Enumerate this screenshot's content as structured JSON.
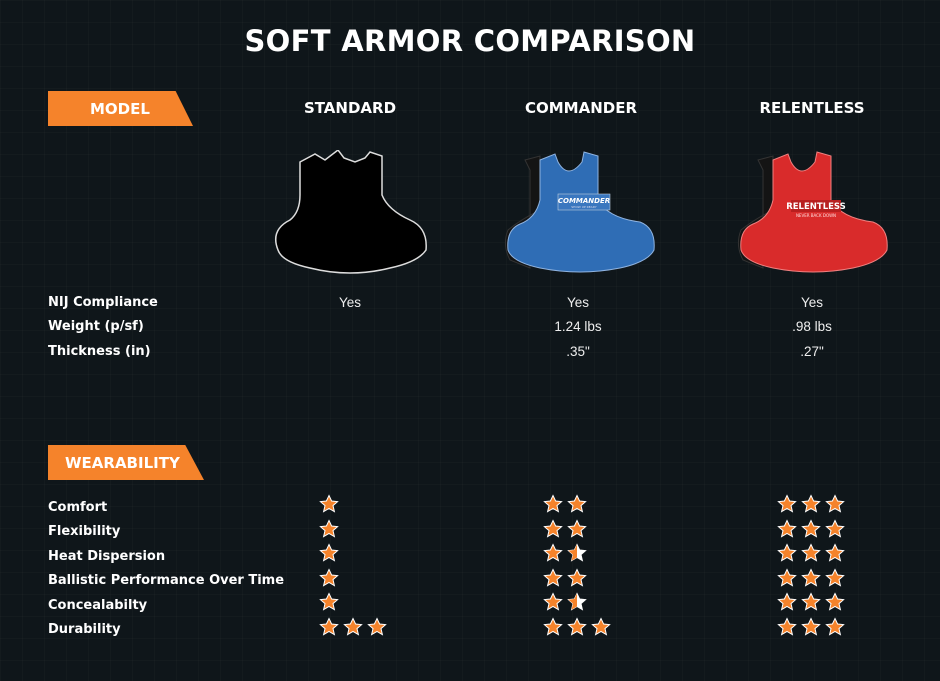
{
  "title": "SOFT ARMOR COMPARISON",
  "sections": {
    "model_label": "MODEL",
    "wearability_label": "WEARABILITY"
  },
  "models": [
    {
      "name": "STANDARD",
      "color": "#000000",
      "badge": ""
    },
    {
      "name": "COMMANDER",
      "color": "#2f6db5",
      "badge": "COMMANDER",
      "badge_sub": "SHOW UP READY"
    },
    {
      "name": "RELENTLESS",
      "color": "#d92b2b",
      "badge": "RELENTLESS",
      "badge_sub": "NEVER BACK DOWN"
    }
  ],
  "specs": {
    "labels": [
      "NIJ Compliance",
      "Weight (p/sf)",
      "Thickness (in)"
    ],
    "values": [
      [
        "Yes",
        "Yes",
        "Yes"
      ],
      [
        "",
        "1.24 lbs",
        ".98 lbs"
      ],
      [
        "",
        ".35\"",
        ".27\""
      ]
    ]
  },
  "wearability": {
    "labels": [
      "Comfort",
      "Flexibility",
      "Heat Dispersion",
      "Ballistic Performance Over Time",
      "Concealabilty",
      "Durability"
    ],
    "ratings": [
      [
        1,
        2,
        3
      ],
      [
        1,
        2,
        3
      ],
      [
        1,
        1.5,
        3
      ],
      [
        1,
        2,
        3
      ],
      [
        1,
        1.5,
        3
      ],
      [
        3,
        3,
        3
      ]
    ]
  },
  "colors": {
    "accent": "#f5832b",
    "background": "#0f161a",
    "star": "#f5832b"
  }
}
